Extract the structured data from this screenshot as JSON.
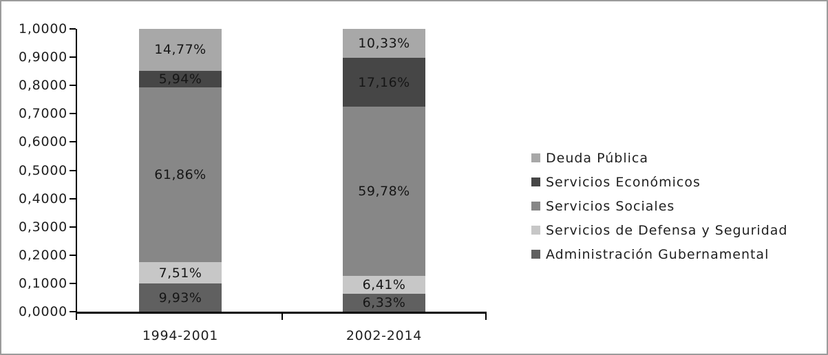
{
  "figure": {
    "border_color": "#9b9b9b",
    "background_color": "#ffffff",
    "text_color": "#1f1f1f"
  },
  "chart_data": {
    "type": "bar",
    "variant": "stacked-column",
    "title": "",
    "xlabel": "",
    "ylabel": "",
    "categories": [
      "1994-2001",
      "2002-2014"
    ],
    "series": [
      {
        "name": "Administración Gubernamental",
        "color": "#606060",
        "values": [
          9.93,
          6.33
        ],
        "labels": [
          "9,93%",
          "6,33%"
        ]
      },
      {
        "name": "Servicios de Defensa y Seguridad",
        "color": "#c7c7c7",
        "values": [
          7.51,
          6.41
        ],
        "labels": [
          "7,51%",
          "6,41%"
        ]
      },
      {
        "name": "Servicios Sociales",
        "color": "#878787",
        "values": [
          61.86,
          59.78
        ],
        "labels": [
          "61,86%",
          "59,78%"
        ]
      },
      {
        "name": "Servicios Económicos",
        "color": "#464646",
        "values": [
          5.94,
          17.16
        ],
        "labels": [
          "5,94%",
          "17,16%"
        ]
      },
      {
        "name": "Deuda Pública",
        "color": "#a8a8a8",
        "values": [
          14.77,
          10.33
        ],
        "labels": [
          "14,77%",
          "10,33%"
        ]
      }
    ],
    "y_axis": {
      "min": 0,
      "max": 1,
      "step": 0.1,
      "tick_labels": [
        "0,0000",
        "0,1000",
        "0,2000",
        "0,3000",
        "0,4000",
        "0,5000",
        "0,6000",
        "0,7000",
        "0,8000",
        "0,9000",
        "1,0000"
      ],
      "grid": false
    },
    "legend": {
      "position": "right",
      "entries": [
        "Deuda Pública",
        "Servicios Económicos",
        "Servicios Sociales",
        "Servicios de Defensa y Seguridad",
        "Administración Gubernamental"
      ]
    }
  }
}
